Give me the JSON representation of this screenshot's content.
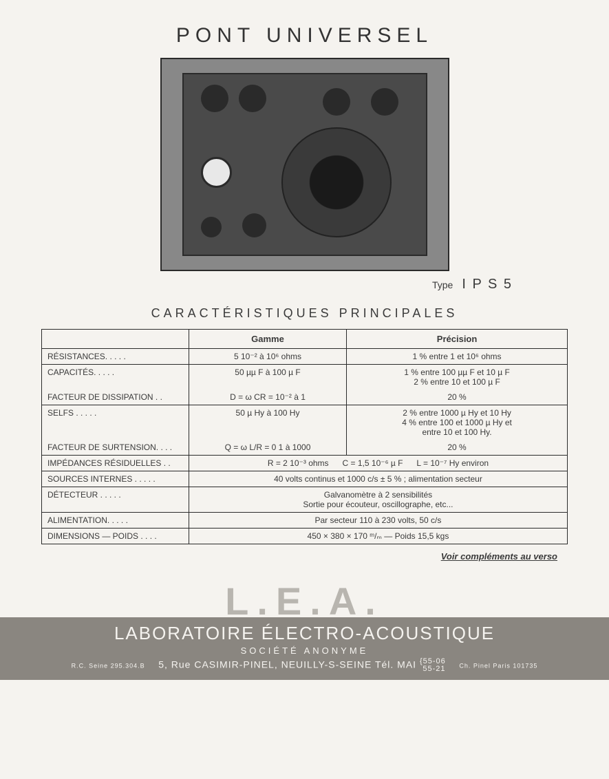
{
  "title": "PONT UNIVERSEL",
  "type_label": "Type",
  "type_value": "I P S 5",
  "section_title": "CARACTÉRISTIQUES PRINCIPALES",
  "table": {
    "headers": {
      "col1": "",
      "col2": "Gamme",
      "col3": "Précision"
    },
    "rows": [
      {
        "label": "RÉSISTANCES. . . . .",
        "gamme": "5 10⁻² à 10⁶ ohms",
        "precision": "1 % entre 1 et 10⁶ ohms",
        "end": true
      },
      {
        "label": "CAPACITÉS. . . . .",
        "gamme": "50 µµ F à 100 µ F",
        "precision": "1 % entre 100 µµ F et 10 µ F\n2 % entre 10 et 100 µ F",
        "end": false
      },
      {
        "label": "FACTEUR DE DISSIPATION . .",
        "gamme": "D = ω CR = 10⁻² à 1",
        "precision": "20 %",
        "end": true
      },
      {
        "label": "SELFS . . . . .",
        "gamme": "50 µ Hy à 100 Hy",
        "precision": "2 % entre 1000 µ Hy et 10 Hy\n4 % entre 100 et 1000 µ Hy et\nentre 10 et 100 Hy.",
        "end": false
      },
      {
        "label": "FACTEUR DE SURTENSION. . . .",
        "gamme": "Q = ω L/R = 0 1 à 1000",
        "precision": "20 %",
        "end": true
      }
    ],
    "merged_rows": [
      {
        "label": "IMPÉDANCES RÉSIDUELLES . .",
        "value": "R = 2 10⁻³ ohms      C = 1,5 10⁻⁶ µ F      L = 10⁻⁷ Hy environ"
      },
      {
        "label": "SOURCES INTERNES . . . . .",
        "value": "40 volts continus et 1000 c/s ± 5 % ; alimentation secteur"
      },
      {
        "label": "DÉTECTEUR . . . . .",
        "value": "Galvanomètre à 2 sensibilités\nSortie pour écouteur, oscillographe, etc..."
      },
      {
        "label": "ALIMENTATION. . . . .",
        "value": "Par secteur 110 à 230 volts, 50 c/s"
      },
      {
        "label": "DIMENSIONS — POIDS . . . .",
        "value": "450 × 380 × 170 ᵐ/ₘ — Poids 15,5 kgs"
      }
    ]
  },
  "footer_note": "Voir compléments au verso",
  "lea": {
    "logo": "L.E.A.",
    "title": "LABORATOIRE ÉLECTRO-ACOUSTIQUE",
    "subtitle": "SOCIÉTÉ ANONYME",
    "rc": "R.C. Seine 295.304.B",
    "address": "5, Rue CASIMIR-PINEL, NEUILLY-S-SEINE Tél. MAI",
    "phone1": "55-06",
    "phone2": "55-21",
    "printer": "Ch. Pinel Paris 101735"
  },
  "colors": {
    "page_bg": "#f5f3ef",
    "text": "#3a3a3a",
    "border": "#2a2a2a",
    "logo_gray": "#b8b5af",
    "banner_bg": "#8a8680",
    "banner_text": "#f5f3ef"
  },
  "fontsize": {
    "title": 30,
    "type": 18,
    "section": 18,
    "table_header": 13,
    "table_cell": 12,
    "footer_note": 13,
    "logo": 56,
    "lab_title": 26,
    "lab_subtitle": 13,
    "lab_address": 14
  }
}
